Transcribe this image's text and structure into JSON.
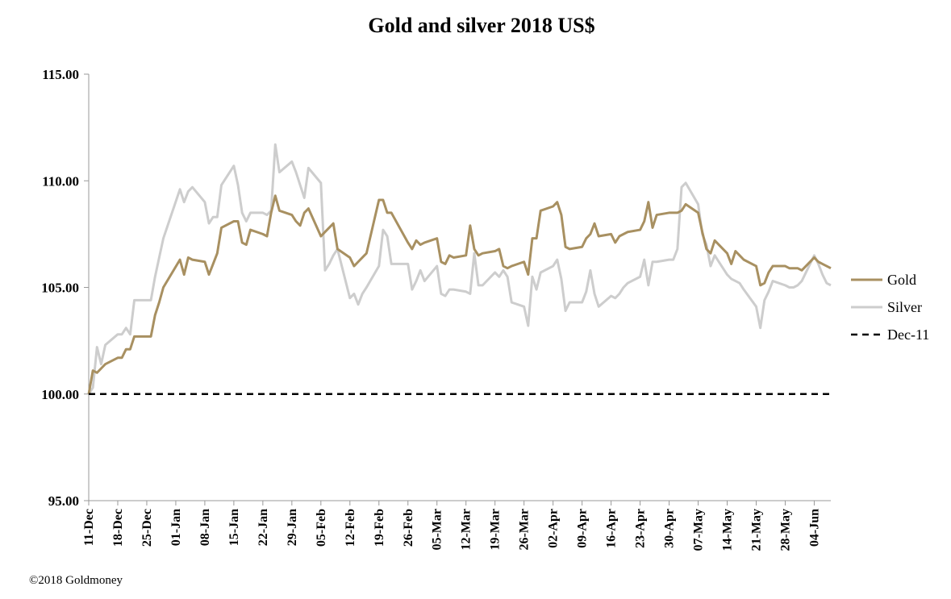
{
  "chart_data": {
    "type": "line",
    "title": "Gold and silver 2018  US$",
    "xlabel": "",
    "ylabel": "",
    "ylim": [
      95,
      115
    ],
    "yticks": [
      "95.00",
      "100.00",
      "105.00",
      "110.00",
      "115.00"
    ],
    "x_range": [
      "2017-12-11",
      "2018-06-08"
    ],
    "xticks": [
      "11-Dec",
      "18-Dec",
      "25-Dec",
      "01-Jan",
      "08-Jan",
      "15-Jan",
      "22-Jan",
      "29-Jan",
      "05-Feb",
      "12-Feb",
      "19-Feb",
      "26-Feb",
      "05-Mar",
      "12-Mar",
      "19-Mar",
      "26-Mar",
      "02-Apr",
      "09-Apr",
      "16-Apr",
      "23-Apr",
      "30-Apr",
      "07-May",
      "14-May",
      "21-May",
      "28-May",
      "04-Jun"
    ],
    "grid": false,
    "legend_position": "right",
    "series": [
      {
        "name": "Gold",
        "color": "#a89061",
        "style": "solid",
        "points": [
          [
            "2017-12-11",
            100.0
          ],
          [
            "2017-12-12",
            101.1
          ],
          [
            "2017-12-13",
            101.0
          ],
          [
            "2017-12-14",
            101.2
          ],
          [
            "2017-12-15",
            101.4
          ],
          [
            "2017-12-18",
            101.7
          ],
          [
            "2017-12-19",
            101.7
          ],
          [
            "2017-12-20",
            102.1
          ],
          [
            "2017-12-21",
            102.1
          ],
          [
            "2017-12-22",
            102.7
          ],
          [
            "2017-12-26",
            102.7
          ],
          [
            "2017-12-27",
            103.7
          ],
          [
            "2017-12-28",
            104.3
          ],
          [
            "2017-12-29",
            105.0
          ],
          [
            "2018-01-02",
            106.3
          ],
          [
            "2018-01-03",
            105.6
          ],
          [
            "2018-01-04",
            106.4
          ],
          [
            "2018-01-05",
            106.3
          ],
          [
            "2018-01-08",
            106.2
          ],
          [
            "2018-01-09",
            105.6
          ],
          [
            "2018-01-10",
            106.1
          ],
          [
            "2018-01-11",
            106.6
          ],
          [
            "2018-01-12",
            107.8
          ],
          [
            "2018-01-15",
            108.1
          ],
          [
            "2018-01-16",
            108.1
          ],
          [
            "2018-01-17",
            107.1
          ],
          [
            "2018-01-18",
            107.0
          ],
          [
            "2018-01-19",
            107.7
          ],
          [
            "2018-01-22",
            107.5
          ],
          [
            "2018-01-23",
            107.4
          ],
          [
            "2018-01-24",
            108.5
          ],
          [
            "2018-01-25",
            109.3
          ],
          [
            "2018-01-26",
            108.6
          ],
          [
            "2018-01-29",
            108.4
          ],
          [
            "2018-01-30",
            108.1
          ],
          [
            "2018-01-31",
            107.9
          ],
          [
            "2018-02-01",
            108.5
          ],
          [
            "2018-02-02",
            108.7
          ],
          [
            "2018-02-05",
            107.4
          ],
          [
            "2018-02-06",
            107.6
          ],
          [
            "2018-02-07",
            107.8
          ],
          [
            "2018-02-08",
            108.0
          ],
          [
            "2018-02-09",
            106.8
          ],
          [
            "2018-02-12",
            106.4
          ],
          [
            "2018-02-13",
            106.0
          ],
          [
            "2018-02-14",
            106.2
          ],
          [
            "2018-02-15",
            106.4
          ],
          [
            "2018-02-16",
            106.6
          ],
          [
            "2018-02-19",
            109.1
          ],
          [
            "2018-02-20",
            109.1
          ],
          [
            "2018-02-21",
            108.5
          ],
          [
            "2018-02-22",
            108.5
          ],
          [
            "2018-02-26",
            107.1
          ],
          [
            "2018-02-27",
            106.8
          ],
          [
            "2018-02-28",
            107.2
          ],
          [
            "2018-03-01",
            107.0
          ],
          [
            "2018-03-02",
            107.1
          ],
          [
            "2018-03-05",
            107.3
          ],
          [
            "2018-03-06",
            106.2
          ],
          [
            "2018-03-07",
            106.1
          ],
          [
            "2018-03-08",
            106.5
          ],
          [
            "2018-03-09",
            106.4
          ],
          [
            "2018-03-12",
            106.5
          ],
          [
            "2018-03-13",
            107.9
          ],
          [
            "2018-03-14",
            106.8
          ],
          [
            "2018-03-15",
            106.5
          ],
          [
            "2018-03-16",
            106.6
          ],
          [
            "2018-03-19",
            106.7
          ],
          [
            "2018-03-20",
            106.8
          ],
          [
            "2018-03-21",
            106.0
          ],
          [
            "2018-03-22",
            105.9
          ],
          [
            "2018-03-23",
            106.0
          ],
          [
            "2018-03-26",
            106.2
          ],
          [
            "2018-03-27",
            105.6
          ],
          [
            "2018-03-28",
            107.3
          ],
          [
            "2018-03-29",
            107.3
          ],
          [
            "2018-03-30",
            108.6
          ],
          [
            "2018-04-02",
            108.8
          ],
          [
            "2018-04-03",
            109.0
          ],
          [
            "2018-04-04",
            108.4
          ],
          [
            "2018-04-05",
            106.9
          ],
          [
            "2018-04-06",
            106.8
          ],
          [
            "2018-04-09",
            106.9
          ],
          [
            "2018-04-10",
            107.3
          ],
          [
            "2018-04-11",
            107.5
          ],
          [
            "2018-04-12",
            108.0
          ],
          [
            "2018-04-13",
            107.4
          ],
          [
            "2018-04-16",
            107.5
          ],
          [
            "2018-04-17",
            107.1
          ],
          [
            "2018-04-18",
            107.4
          ],
          [
            "2018-04-19",
            107.5
          ],
          [
            "2018-04-20",
            107.6
          ],
          [
            "2018-04-23",
            107.7
          ],
          [
            "2018-04-24",
            108.1
          ],
          [
            "2018-04-25",
            109.0
          ],
          [
            "2018-04-26",
            107.8
          ],
          [
            "2018-04-27",
            108.4
          ],
          [
            "2018-04-30",
            108.5
          ],
          [
            "2018-05-01",
            108.5
          ],
          [
            "2018-05-02",
            108.5
          ],
          [
            "2018-05-03",
            108.6
          ],
          [
            "2018-05-04",
            108.9
          ],
          [
            "2018-05-07",
            108.5
          ],
          [
            "2018-05-08",
            107.6
          ],
          [
            "2018-05-09",
            106.8
          ],
          [
            "2018-05-10",
            106.6
          ],
          [
            "2018-05-11",
            107.2
          ],
          [
            "2018-05-14",
            106.6
          ],
          [
            "2018-05-15",
            106.1
          ],
          [
            "2018-05-16",
            106.7
          ],
          [
            "2018-05-17",
            106.5
          ],
          [
            "2018-05-18",
            106.3
          ],
          [
            "2018-05-21",
            106.0
          ],
          [
            "2018-05-22",
            105.1
          ],
          [
            "2018-05-23",
            105.2
          ],
          [
            "2018-05-24",
            105.7
          ],
          [
            "2018-05-25",
            106.0
          ],
          [
            "2018-05-28",
            106.0
          ],
          [
            "2018-05-29",
            105.9
          ],
          [
            "2018-05-30",
            105.9
          ],
          [
            "2018-05-31",
            105.9
          ],
          [
            "2018-06-01",
            105.8
          ],
          [
            "2018-06-04",
            106.4
          ],
          [
            "2018-06-05",
            106.2
          ],
          [
            "2018-06-06",
            106.1
          ],
          [
            "2018-06-07",
            106.0
          ],
          [
            "2018-06-08",
            105.9
          ]
        ]
      },
      {
        "name": "Silver",
        "color": "#cdcdcd",
        "style": "solid",
        "points": [
          [
            "2017-12-11",
            100.0
          ],
          [
            "2017-12-12",
            100.3
          ],
          [
            "2017-12-13",
            102.2
          ],
          [
            "2017-12-14",
            101.4
          ],
          [
            "2017-12-15",
            102.3
          ],
          [
            "2017-12-18",
            102.8
          ],
          [
            "2017-12-19",
            102.8
          ],
          [
            "2017-12-20",
            103.1
          ],
          [
            "2017-12-21",
            102.8
          ],
          [
            "2017-12-22",
            104.4
          ],
          [
            "2017-12-26",
            104.4
          ],
          [
            "2017-12-27",
            105.5
          ],
          [
            "2017-12-28",
            106.4
          ],
          [
            "2017-12-29",
            107.3
          ],
          [
            "2018-01-02",
            109.6
          ],
          [
            "2018-01-03",
            109.0
          ],
          [
            "2018-01-04",
            109.5
          ],
          [
            "2018-01-05",
            109.7
          ],
          [
            "2018-01-08",
            109.0
          ],
          [
            "2018-01-09",
            108.0
          ],
          [
            "2018-01-10",
            108.3
          ],
          [
            "2018-01-11",
            108.3
          ],
          [
            "2018-01-12",
            109.8
          ],
          [
            "2018-01-15",
            110.7
          ],
          [
            "2018-01-16",
            109.8
          ],
          [
            "2018-01-17",
            108.5
          ],
          [
            "2018-01-18",
            108.1
          ],
          [
            "2018-01-19",
            108.5
          ],
          [
            "2018-01-22",
            108.5
          ],
          [
            "2018-01-23",
            108.4
          ],
          [
            "2018-01-24",
            108.6
          ],
          [
            "2018-01-25",
            111.7
          ],
          [
            "2018-01-26",
            110.4
          ],
          [
            "2018-01-29",
            110.9
          ],
          [
            "2018-01-30",
            110.4
          ],
          [
            "2018-01-31",
            109.8
          ],
          [
            "2018-02-01",
            109.2
          ],
          [
            "2018-02-02",
            110.6
          ],
          [
            "2018-02-05",
            109.9
          ],
          [
            "2018-02-06",
            105.8
          ],
          [
            "2018-02-07",
            106.1
          ],
          [
            "2018-02-08",
            106.5
          ],
          [
            "2018-02-09",
            106.8
          ],
          [
            "2018-02-12",
            104.5
          ],
          [
            "2018-02-13",
            104.7
          ],
          [
            "2018-02-14",
            104.2
          ],
          [
            "2018-02-15",
            104.7
          ],
          [
            "2018-02-16",
            105.0
          ],
          [
            "2018-02-19",
            106.0
          ],
          [
            "2018-02-20",
            107.7
          ],
          [
            "2018-02-21",
            107.4
          ],
          [
            "2018-02-22",
            106.1
          ],
          [
            "2018-02-26",
            106.1
          ],
          [
            "2018-02-27",
            104.9
          ],
          [
            "2018-02-28",
            105.3
          ],
          [
            "2018-03-01",
            105.8
          ],
          [
            "2018-03-02",
            105.3
          ],
          [
            "2018-03-05",
            106.0
          ],
          [
            "2018-03-06",
            104.7
          ],
          [
            "2018-03-07",
            104.6
          ],
          [
            "2018-03-08",
            104.9
          ],
          [
            "2018-03-09",
            104.9
          ],
          [
            "2018-03-12",
            104.8
          ],
          [
            "2018-03-13",
            104.7
          ],
          [
            "2018-03-14",
            106.6
          ],
          [
            "2018-03-15",
            105.1
          ],
          [
            "2018-03-16",
            105.1
          ],
          [
            "2018-03-19",
            105.7
          ],
          [
            "2018-03-20",
            105.5
          ],
          [
            "2018-03-21",
            105.8
          ],
          [
            "2018-03-22",
            105.5
          ],
          [
            "2018-03-23",
            104.3
          ],
          [
            "2018-03-26",
            104.1
          ],
          [
            "2018-03-27",
            103.2
          ],
          [
            "2018-03-28",
            105.5
          ],
          [
            "2018-03-29",
            104.9
          ],
          [
            "2018-03-30",
            105.7
          ],
          [
            "2018-04-02",
            106.0
          ],
          [
            "2018-04-03",
            106.3
          ],
          [
            "2018-04-04",
            105.4
          ],
          [
            "2018-04-05",
            103.9
          ],
          [
            "2018-04-06",
            104.3
          ],
          [
            "2018-04-09",
            104.3
          ],
          [
            "2018-04-10",
            104.8
          ],
          [
            "2018-04-11",
            105.8
          ],
          [
            "2018-04-12",
            104.7
          ],
          [
            "2018-04-13",
            104.1
          ],
          [
            "2018-04-16",
            104.6
          ],
          [
            "2018-04-17",
            104.5
          ],
          [
            "2018-04-18",
            104.7
          ],
          [
            "2018-04-19",
            105.0
          ],
          [
            "2018-04-20",
            105.2
          ],
          [
            "2018-04-23",
            105.5
          ],
          [
            "2018-04-24",
            106.3
          ],
          [
            "2018-04-25",
            105.1
          ],
          [
            "2018-04-26",
            106.2
          ],
          [
            "2018-04-27",
            106.2
          ],
          [
            "2018-04-30",
            106.3
          ],
          [
            "2018-05-01",
            106.3
          ],
          [
            "2018-05-02",
            106.8
          ],
          [
            "2018-05-03",
            109.7
          ],
          [
            "2018-05-04",
            109.9
          ],
          [
            "2018-05-07",
            108.9
          ],
          [
            "2018-05-08",
            107.5
          ],
          [
            "2018-05-09",
            107.0
          ],
          [
            "2018-05-10",
            106.0
          ],
          [
            "2018-05-11",
            106.5
          ],
          [
            "2018-05-14",
            105.6
          ],
          [
            "2018-05-15",
            105.4
          ],
          [
            "2018-05-16",
            105.3
          ],
          [
            "2018-05-17",
            105.2
          ],
          [
            "2018-05-18",
            104.9
          ],
          [
            "2018-05-21",
            104.1
          ],
          [
            "2018-05-22",
            103.1
          ],
          [
            "2018-05-23",
            104.4
          ],
          [
            "2018-05-24",
            104.8
          ],
          [
            "2018-05-25",
            105.3
          ],
          [
            "2018-05-28",
            105.1
          ],
          [
            "2018-05-29",
            105.0
          ],
          [
            "2018-05-30",
            105.0
          ],
          [
            "2018-05-31",
            105.1
          ],
          [
            "2018-06-01",
            105.3
          ],
          [
            "2018-06-04",
            106.5
          ],
          [
            "2018-06-05",
            106.1
          ],
          [
            "2018-06-06",
            105.6
          ],
          [
            "2018-06-07",
            105.2
          ],
          [
            "2018-06-08",
            105.1
          ]
        ]
      },
      {
        "name": "Dec-11",
        "color": "#000000",
        "style": "dashed",
        "points": [
          [
            "2017-12-11",
            100.0
          ],
          [
            "2018-06-08",
            100.0
          ]
        ]
      }
    ]
  },
  "footer": {
    "copyright": "©2018 Goldmoney"
  }
}
